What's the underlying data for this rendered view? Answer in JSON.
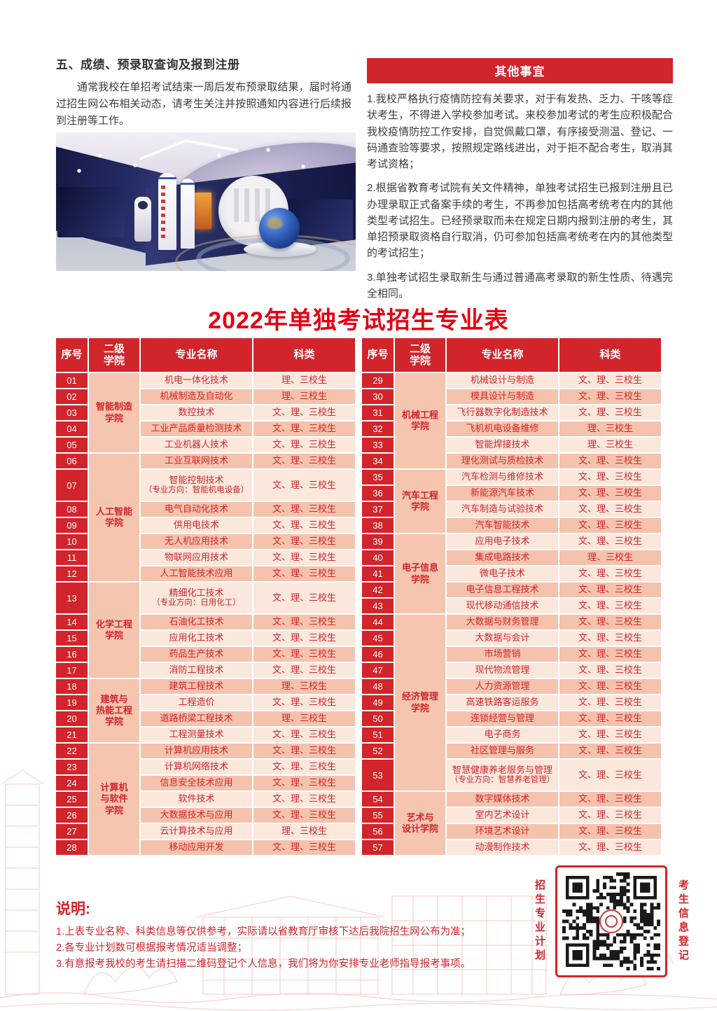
{
  "colors": {
    "accent_red": "#d1252b",
    "title_red": "#e60012",
    "row_light": "#fbe7dc",
    "row_dark": "#f5c2ad",
    "college_bg": "#f5c5b0",
    "body_text": "#3d3d3d"
  },
  "section5": {
    "heading": "五、成绩、预录取查询及报到注册",
    "body": "通常我校在单招考试结束一周后发布预录取结果，届时将通过招生网公布相关动态，请考生关注并按照通知内容进行后续报到注册等工作。"
  },
  "other": {
    "heading": "其他事宜",
    "items": [
      "1.我校严格执行疫情防控有关要求，对于有发热、乏力、干咳等症状考生，不得进入学校参加考试。来校参加考试的考生应积极配合我校疫情防控工作安排，自觉佩戴口罩，有序接受测温、登记、一码通查验等要求，按照规定路线进出，对于拒不配合考生，取消其考试资格；",
      "2.根据省教育考试院有关文件精神，单独考试招生已报到注册且已办理录取正式备案手续的考生，不再参加包括高考统考在内的其他类型考试招生。已经预录取而未在规定日期内报到注册的考生，其单招预录取资格自行取消，仍可参加包括高考统考在内的其他类型的考试招生；",
      "3.单独考试招生录取新生与通过普通高考录取的新生性质、待遇完全相同。"
    ]
  },
  "table_title": "2022年单独考试招生专业表",
  "table": {
    "headers": [
      "序号",
      "二级\n学院",
      "专业名称",
      "科类"
    ],
    "left_groups": [
      {
        "college": "智能制造\n学院",
        "rows": [
          {
            "no": "01",
            "major": "机电一体化技术",
            "cat": "理、三校生"
          },
          {
            "no": "02",
            "major": "机械制造及自动化",
            "cat": "理、三校生"
          },
          {
            "no": "03",
            "major": "数控技术",
            "cat": "文、理、三校生"
          },
          {
            "no": "04",
            "major": "工业产品质量检测技术",
            "cat": "文、理、三校生"
          },
          {
            "no": "05",
            "major": "工业机器人技术",
            "cat": "文、理、三校生"
          }
        ]
      },
      {
        "college": "人工智能\n学院",
        "rows": [
          {
            "no": "06",
            "major": "工业互联网技术",
            "cat": "文、理、三校生"
          },
          {
            "no": "07",
            "major": "智能控制技术",
            "sub": "（专业方向：智能机电设备）",
            "cat": "文、理、三校生",
            "tall": true
          },
          {
            "no": "08",
            "major": "电气自动化技术",
            "cat": "文、理、三校生"
          },
          {
            "no": "09",
            "major": "供用电技术",
            "cat": "文、理、三校生"
          },
          {
            "no": "10",
            "major": "无人机应用技术",
            "cat": "文、理、三校生"
          },
          {
            "no": "11",
            "major": "物联网应用技术",
            "cat": "文、理、三校生"
          },
          {
            "no": "12",
            "major": "人工智能技术应用",
            "cat": "文、理、三校生"
          }
        ]
      },
      {
        "college": "化学工程\n学院",
        "rows": [
          {
            "no": "13",
            "major": "精细化工技术",
            "sub": "（专业方向：日用化工）",
            "cat": "文、理、三校生",
            "tall": true
          },
          {
            "no": "14",
            "major": "石油化工技术",
            "cat": "文、理、三校生"
          },
          {
            "no": "15",
            "major": "应用化工技术",
            "cat": "文、理、三校生"
          },
          {
            "no": "16",
            "major": "药品生产技术",
            "cat": "文、理、三校生"
          },
          {
            "no": "17",
            "major": "消防工程技术",
            "cat": "文、理、三校生"
          }
        ]
      },
      {
        "college": "建筑与\n热能工程\n学院",
        "rows": [
          {
            "no": "18",
            "major": "建筑工程技术",
            "cat": "理、三校生"
          },
          {
            "no": "19",
            "major": "工程造价",
            "cat": "文、理、三校生"
          },
          {
            "no": "20",
            "major": "道路桥梁工程技术",
            "cat": "理、三校生"
          },
          {
            "no": "21",
            "major": "工程测量技术",
            "cat": "文、理、三校生"
          }
        ]
      },
      {
        "college": "计算机\n与软件\n学院",
        "rows": [
          {
            "no": "22",
            "major": "计算机应用技术",
            "cat": "文、理、三校生"
          },
          {
            "no": "23",
            "major": "计算机网络技术",
            "cat": "文、理、三校生"
          },
          {
            "no": "24",
            "major": "信息安全技术应用",
            "cat": "文、理、三校生"
          },
          {
            "no": "25",
            "major": "软件技术",
            "cat": "文、理、三校生"
          },
          {
            "no": "26",
            "major": "大数据技术与应用",
            "cat": "文、理、三校生"
          },
          {
            "no": "27",
            "major": "云计算技术与应用",
            "cat": "理、三校生"
          },
          {
            "no": "28",
            "major": "移动应用开发",
            "cat": "文、理、三校生"
          }
        ]
      }
    ],
    "right_groups": [
      {
        "college": "机械工程\n学院",
        "rows": [
          {
            "no": "29",
            "major": "机械设计与制造",
            "cat": "文、理、三校生"
          },
          {
            "no": "30",
            "major": "模具设计与制造",
            "cat": "文、理、三校生"
          },
          {
            "no": "31",
            "major": "飞行器数字化制造技术",
            "cat": "文、理、三校生"
          },
          {
            "no": "32",
            "major": "飞机机电设备维修",
            "cat": "理、三校生"
          },
          {
            "no": "33",
            "major": "智能焊接技术",
            "cat": "理、三校生"
          },
          {
            "no": "34",
            "major": "理化测试与质检技术",
            "cat": "文、理、三校生"
          }
        ]
      },
      {
        "college": "汽车工程\n学院",
        "rows": [
          {
            "no": "35",
            "major": "汽车检测与维修技术",
            "cat": "文、理、三校生"
          },
          {
            "no": "36",
            "major": "新能源汽车技术",
            "cat": "文、理、三校生"
          },
          {
            "no": "37",
            "major": "汽车制造与试验技术",
            "cat": "文、理、三校生"
          },
          {
            "no": "38",
            "major": "汽车智能技术",
            "cat": "文、理、三校生"
          }
        ]
      },
      {
        "college": "电子信息\n学院",
        "rows": [
          {
            "no": "39",
            "major": "应用电子技术",
            "cat": "文、理、三校生"
          },
          {
            "no": "40",
            "major": "集成电路技术",
            "cat": "理、三校生"
          },
          {
            "no": "41",
            "major": "微电子技术",
            "cat": "文、理、三校生"
          },
          {
            "no": "42",
            "major": "电子信息工程技术",
            "cat": "文、理、三校生"
          },
          {
            "no": "43",
            "major": "现代移动通信技术",
            "cat": "文、理、三校生"
          }
        ]
      },
      {
        "college": "经济管理\n学院",
        "rows": [
          {
            "no": "44",
            "major": "大数据与财务管理",
            "cat": "文、理、三校生"
          },
          {
            "no": "45",
            "major": "大数据与会计",
            "cat": "文、理、三校生"
          },
          {
            "no": "46",
            "major": "市场营销",
            "cat": "文、理、三校生"
          },
          {
            "no": "47",
            "major": "现代物流管理",
            "cat": "文、理、三校生"
          },
          {
            "no": "48",
            "major": "人力资源管理",
            "cat": "文、理、三校生"
          },
          {
            "no": "49",
            "major": "高速铁路客运服务",
            "cat": "文、理、三校生"
          },
          {
            "no": "50",
            "major": "连锁经营与管理",
            "cat": "文、理、三校生"
          },
          {
            "no": "51",
            "major": "电子商务",
            "cat": "文、理、三校生"
          },
          {
            "no": "52",
            "major": "社区管理与服务",
            "cat": "文、理、三校生"
          },
          {
            "no": "53",
            "major": "智慧健康养老服务与管理",
            "sub": "（专业方向：智慧养老管理）",
            "cat": "文、理、三校生",
            "tall": true
          }
        ]
      },
      {
        "college": "艺术与\n设计学院",
        "rows": [
          {
            "no": "54",
            "major": "数字媒体技术",
            "cat": "文、理、三校生"
          },
          {
            "no": "55",
            "major": "室内艺术设计",
            "cat": "文、理、三校生"
          },
          {
            "no": "56",
            "major": "环境艺术设计",
            "cat": "文、理、三校生"
          },
          {
            "no": "57",
            "major": "动漫制作技术",
            "cat": "文、理、三校生"
          }
        ]
      }
    ]
  },
  "notes": {
    "heading": "说明:",
    "items": [
      "1.上表专业名称、科类信息等仅供参考，实际请以省教育厅审核下达后我院招生网公布为准；",
      "2.各专业计划数可根据报考情况适当调整；",
      "3.有意报考我校的考生请扫描二维码登记个人信息，我们将为你安排专业老师指导报考事项。"
    ]
  },
  "qr": {
    "left_label": "招生专业计划",
    "right_label": "考生信息登记"
  }
}
